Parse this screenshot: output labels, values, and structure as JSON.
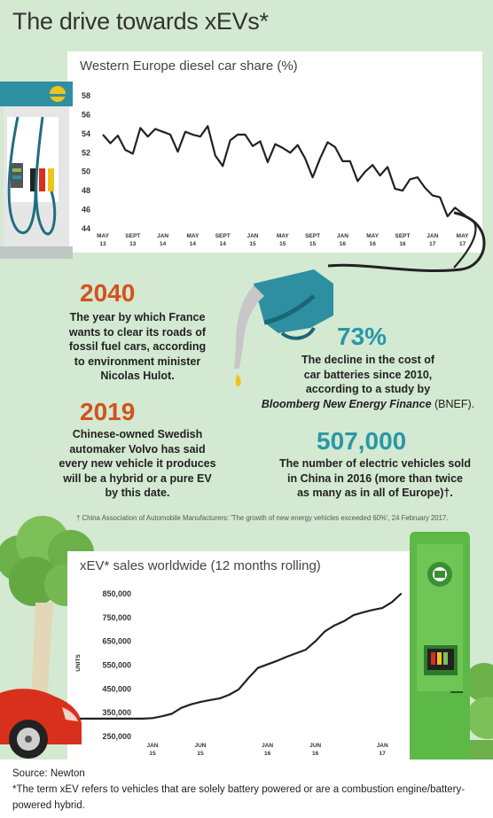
{
  "title": "The drive towards xEVs*",
  "charts": [
    {
      "type": "line",
      "title": "Western Europe diesel car share (%)",
      "ylim": [
        44,
        58
      ],
      "yticks": [
        44,
        46,
        48,
        50,
        52,
        54,
        56,
        58
      ],
      "xticks": [
        {
          "top": "MAY",
          "bottom": "13",
          "x": 0
        },
        {
          "top": "SEPT",
          "bottom": "13",
          "x": 4
        },
        {
          "top": "JAN",
          "bottom": "14",
          "x": 8
        },
        {
          "top": "MAY",
          "bottom": "14",
          "x": 12
        },
        {
          "top": "SEPT",
          "bottom": "14",
          "x": 16
        },
        {
          "top": "JAN",
          "bottom": "15",
          "x": 20
        },
        {
          "top": "MAY",
          "bottom": "15",
          "x": 24
        },
        {
          "top": "SEPT",
          "bottom": "15",
          "x": 28
        },
        {
          "top": "JAN",
          "bottom": "16",
          "x": 32
        },
        {
          "top": "MAY",
          "bottom": "16",
          "x": 36
        },
        {
          "top": "SEPT",
          "bottom": "16",
          "x": 40
        },
        {
          "top": "JAN",
          "bottom": "17",
          "x": 44
        },
        {
          "top": "MAY",
          "bottom": "17",
          "x": 48
        }
      ],
      "x": [
        0,
        1,
        2,
        3,
        4,
        5,
        6,
        7,
        8,
        9,
        10,
        11,
        12,
        13,
        14,
        15,
        16,
        17,
        18,
        19,
        20,
        21,
        22,
        23,
        24,
        25,
        26,
        27,
        28,
        29,
        30,
        31,
        32,
        33,
        34,
        35,
        36,
        37,
        38,
        39,
        40,
        41,
        42,
        43,
        44,
        45,
        46,
        47,
        48,
        49
      ],
      "values": [
        53.9,
        53.0,
        53.8,
        52.3,
        51.9,
        54.6,
        53.7,
        54.5,
        54.2,
        53.9,
        52.1,
        54.2,
        53.9,
        53.7,
        54.8,
        51.7,
        50.6,
        53.3,
        53.9,
        53.9,
        52.7,
        53.2,
        51.0,
        52.9,
        52.5,
        52.0,
        52.8,
        51.4,
        49.4,
        51.4,
        53.1,
        52.6,
        51.1,
        51.1,
        49.0,
        50.0,
        50.7,
        49.6,
        50.5,
        48.2,
        48.0,
        49.2,
        49.4,
        48.3,
        47.5,
        47.3,
        45.3,
        46.2,
        45.6,
        45.0
      ]
    },
    {
      "type": "line",
      "title": "xEV* sales worldwide (12 months rolling)",
      "ylabel": "UNITS",
      "ylim": [
        250000,
        850000
      ],
      "yticks": [
        {
          "v": 250000,
          "label": "250,000"
        },
        {
          "v": 350000,
          "label": "350,000"
        },
        {
          "v": 450000,
          "label": "450,000"
        },
        {
          "v": 550000,
          "label": "550,000"
        },
        {
          "v": 650000,
          "label": "650,000"
        },
        {
          "v": 750000,
          "label": "750,000"
        },
        {
          "v": 850000,
          "label": "850,000"
        }
      ],
      "xticks": [
        {
          "top": "JAN",
          "bottom": "15",
          "x": 0
        },
        {
          "top": "JUN",
          "bottom": "15",
          "x": 5
        },
        {
          "top": "JAN",
          "bottom": "16",
          "x": 12
        },
        {
          "top": "JUN",
          "bottom": "16",
          "x": 17
        },
        {
          "top": "JAN",
          "bottom": "17",
          "x": 24
        }
      ],
      "x": [
        -2,
        -1,
        0,
        1,
        2,
        3,
        4,
        5,
        6,
        7,
        8,
        9,
        10,
        11,
        12,
        13,
        14,
        15,
        16,
        17,
        18,
        19,
        20,
        21,
        22,
        23,
        24,
        25,
        26
      ],
      "values": [
        325000,
        325000,
        327000,
        335000,
        345000,
        370000,
        385000,
        395000,
        403000,
        410000,
        425000,
        448000,
        495000,
        538000,
        553000,
        568000,
        585000,
        600000,
        615000,
        650000,
        692000,
        717000,
        735000,
        760000,
        772000,
        782000,
        790000,
        815000,
        852000
      ]
    }
  ],
  "stats": [
    {
      "value": "2040",
      "lines": [
        "The year by which France",
        "wants to clear its roads of",
        "fossil fuel cars, according",
        "to environment minister",
        "Nicolas Hulot."
      ]
    },
    {
      "value": "2019",
      "lines": [
        "Chinese-owned Swedish",
        "automaker Volvo has said",
        "every new vehicle it produces",
        "will be a hybrid or a pure EV",
        "by this date."
      ]
    },
    {
      "value": "73%",
      "lines": [
        "The decline in the cost of",
        "car batteries since 2010,",
        "according to a study by"
      ],
      "italic": "Bloomberg New Energy Finance",
      "tail": " (BNEF)."
    },
    {
      "value": "507,000",
      "lines": [
        "The number of electric vehicles sold",
        "in China in 2016 (more than twice",
        "as many as in all of Europe)†."
      ]
    }
  ],
  "footnote": "† China Association of Automobile Manufacturers: 'The growth of new energy vehicles exceeded 60%', 24 February 2017.",
  "source": "Source: Newton",
  "definition": "*The term xEV refers to vehicles that are solely battery powered or are a combustion engine/battery-powered hybrid.",
  "colors": {
    "background": "#d3e9d1",
    "orange": "#d2521f",
    "teal": "#2898a8",
    "charger_green": "#5cb947",
    "car_red": "#d9301d"
  },
  "icons": [
    "fuel-pump-icon",
    "fuel-nozzle-icon",
    "ev-charger-icon",
    "tree-icon",
    "car-icon"
  ]
}
